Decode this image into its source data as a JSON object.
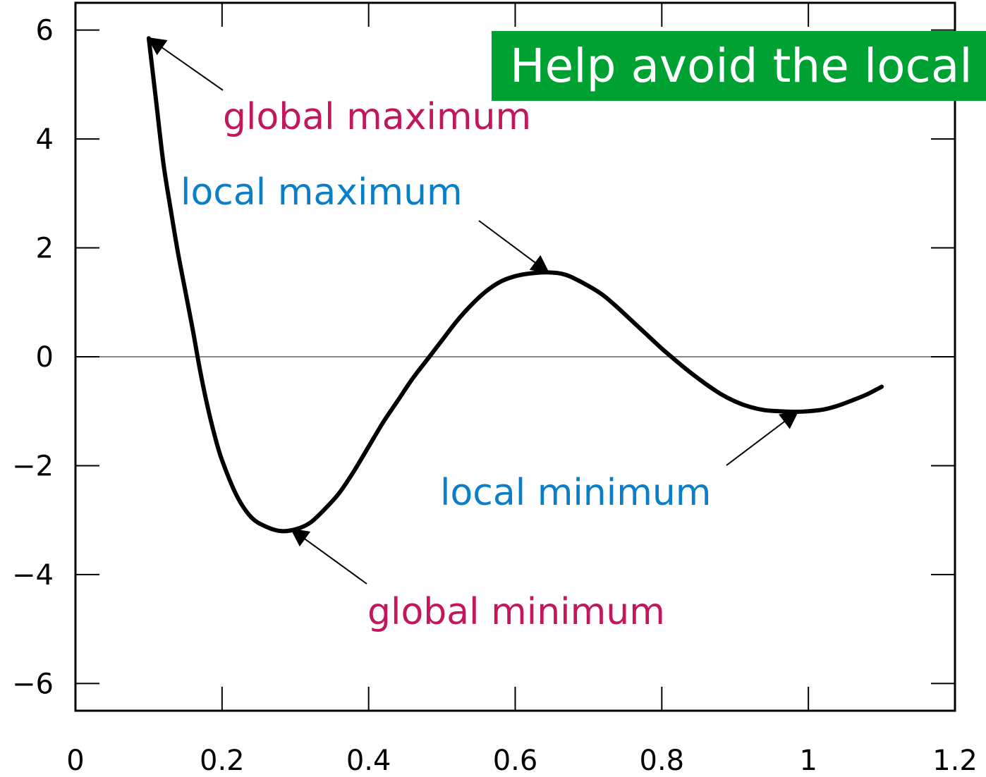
{
  "banner": {
    "text": "Help avoid the local",
    "background": "#00a133",
    "color": "#ffffff"
  },
  "chart_data": {
    "type": "line",
    "title": "",
    "xlabel": "",
    "ylabel": "",
    "xlim": [
      0,
      1.2
    ],
    "ylim": [
      -6.5,
      6.5
    ],
    "xticks": [
      0,
      0.2,
      0.4,
      0.6,
      0.8,
      1,
      1.2
    ],
    "xtick_labels": [
      "0",
      "0.2",
      "0.4",
      "0.6",
      "0.8",
      "1",
      "1.2"
    ],
    "yticks": [
      -6,
      -4,
      -2,
      0,
      2,
      4,
      6
    ],
    "ytick_labels": [
      "−6",
      "−4",
      "−2",
      "0",
      "2",
      "4",
      "6"
    ],
    "grid": false,
    "zero_line": true,
    "series": [
      {
        "color": "#000000",
        "points": [
          [
            0.1,
            5.85
          ],
          [
            0.11,
            4.7
          ],
          [
            0.12,
            3.55
          ],
          [
            0.13,
            2.7
          ],
          [
            0.14,
            1.9
          ],
          [
            0.15,
            1.2
          ],
          [
            0.16,
            0.5
          ],
          [
            0.17,
            -0.25
          ],
          [
            0.18,
            -0.9
          ],
          [
            0.19,
            -1.45
          ],
          [
            0.2,
            -1.9
          ],
          [
            0.22,
            -2.55
          ],
          [
            0.24,
            -2.95
          ],
          [
            0.26,
            -3.12
          ],
          [
            0.28,
            -3.2
          ],
          [
            0.3,
            -3.17
          ],
          [
            0.32,
            -3.05
          ],
          [
            0.34,
            -2.8
          ],
          [
            0.36,
            -2.5
          ],
          [
            0.38,
            -2.1
          ],
          [
            0.4,
            -1.65
          ],
          [
            0.42,
            -1.2
          ],
          [
            0.44,
            -0.8
          ],
          [
            0.46,
            -0.4
          ],
          [
            0.48,
            -0.05
          ],
          [
            0.5,
            0.3
          ],
          [
            0.52,
            0.65
          ],
          [
            0.54,
            0.95
          ],
          [
            0.56,
            1.2
          ],
          [
            0.58,
            1.38
          ],
          [
            0.6,
            1.48
          ],
          [
            0.62,
            1.53
          ],
          [
            0.645,
            1.55
          ],
          [
            0.67,
            1.5
          ],
          [
            0.7,
            1.3
          ],
          [
            0.72,
            1.13
          ],
          [
            0.74,
            0.9
          ],
          [
            0.76,
            0.65
          ],
          [
            0.78,
            0.4
          ],
          [
            0.8,
            0.15
          ],
          [
            0.82,
            -0.08
          ],
          [
            0.84,
            -0.3
          ],
          [
            0.86,
            -0.5
          ],
          [
            0.88,
            -0.68
          ],
          [
            0.9,
            -0.82
          ],
          [
            0.92,
            -0.92
          ],
          [
            0.94,
            -0.98
          ],
          [
            0.96,
            -1.0
          ],
          [
            0.985,
            -1.01
          ],
          [
            1.0,
            -1.0
          ],
          [
            1.02,
            -0.97
          ],
          [
            1.04,
            -0.9
          ],
          [
            1.06,
            -0.8
          ],
          [
            1.08,
            -0.69
          ],
          [
            1.1,
            -0.55
          ]
        ]
      }
    ],
    "annotations": [
      {
        "text": "global maximum",
        "color": "#c2185b",
        "x": 0.1,
        "y": 5.85
      },
      {
        "text": "local maximum",
        "color": "#0a7fc9",
        "x": 0.645,
        "y": 1.55
      },
      {
        "text": "global minimum",
        "color": "#c2185b",
        "x": 0.295,
        "y": -3.17
      },
      {
        "text": "local minimum",
        "color": "#0a7fc9",
        "x": 0.985,
        "y": -1.01
      }
    ]
  }
}
